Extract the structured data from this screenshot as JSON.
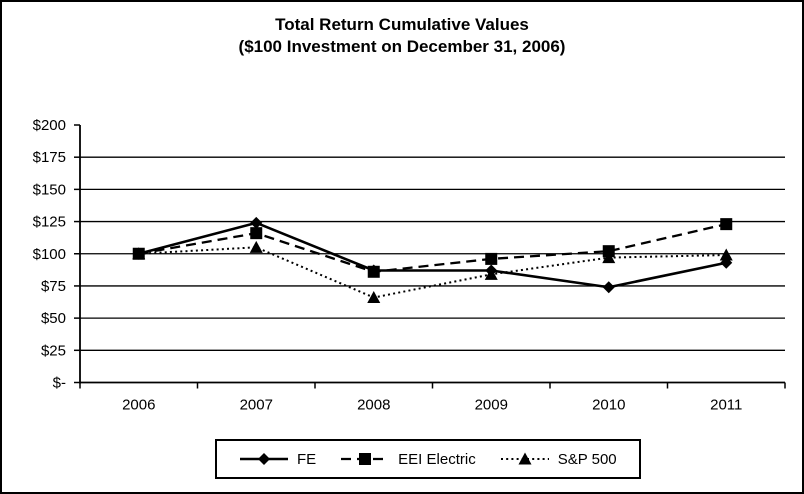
{
  "title": {
    "line1": "Total Return Cumulative Values",
    "line2": "($100 Investment on December 31, 2006)"
  },
  "chart_data": {
    "type": "line",
    "title": "Total Return Cumulative Values ($100 Investment on December 31, 2006)",
    "categories": [
      "2006",
      "2007",
      "2008",
      "2009",
      "2010",
      "2011"
    ],
    "series": [
      {
        "name": "FE",
        "values": [
          100,
          124,
          87,
          87,
          74,
          93
        ],
        "line_style": "solid",
        "marker": "diamond"
      },
      {
        "name": "EEI Electric",
        "values": [
          100,
          116,
          86,
          96,
          102,
          123
        ],
        "line_style": "dashed",
        "marker": "square"
      },
      {
        "name": "S&P 500",
        "values": [
          100,
          105,
          66,
          84,
          97,
          99
        ],
        "line_style": "dotted",
        "marker": "triangle"
      }
    ],
    "y_ticks": [
      {
        "label": "$-",
        "value": 0
      },
      {
        "label": "$25",
        "value": 25
      },
      {
        "label": "$50",
        "value": 50
      },
      {
        "label": "$75",
        "value": 75
      },
      {
        "label": "$100",
        "value": 100
      },
      {
        "label": "$125",
        "value": 125
      },
      {
        "label": "$150",
        "value": 150
      },
      {
        "label": "$175",
        "value": 175
      },
      {
        "label": "$200",
        "value": 200
      }
    ],
    "ylim": [
      0,
      200
    ],
    "xlabel": "",
    "ylabel": "",
    "grid": "horizontal",
    "legend_position": "bottom",
    "color": "#000000",
    "background": "#ffffff"
  }
}
